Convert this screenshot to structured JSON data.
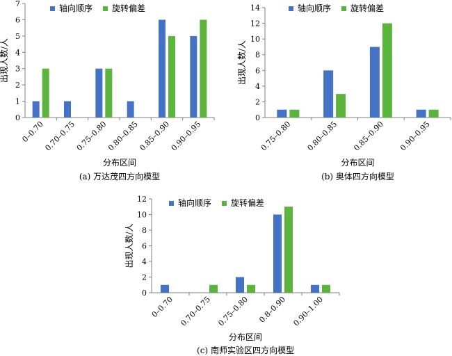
{
  "colors": {
    "series_1": "#4472C4",
    "series_2": "#5BB43C",
    "axis": "#7f7f7f"
  },
  "chart_data": [
    {
      "type": "bar",
      "caption": "(a) 万达茂四方向模型",
      "xlabel": "分布区间",
      "ylabel": "出现人数/人",
      "ylim": [
        0,
        7
      ],
      "yticks": [
        0,
        1,
        2,
        3,
        4,
        5,
        6,
        7
      ],
      "categories": [
        "0–0.70",
        "0.70–0.75",
        "0.75–0.80",
        "0.80–0.85",
        "0.85–0.90",
        "0.90–0.95"
      ],
      "series": [
        {
          "name": "轴向顺序",
          "values": [
            1,
            1,
            3,
            1,
            6,
            5
          ]
        },
        {
          "name": "旋转偏差",
          "values": [
            3,
            0,
            3,
            0,
            5,
            6
          ]
        }
      ],
      "legend": "top",
      "grid": false
    },
    {
      "type": "bar",
      "caption": "(b) 奥体四方向模型",
      "xlabel": "分布区间",
      "ylabel": "出现人数/人",
      "ylim": [
        0,
        14
      ],
      "yticks": [
        0,
        2,
        4,
        6,
        8,
        10,
        12,
        14
      ],
      "categories": [
        "0.75–0.80",
        "0.80–0.85",
        "0.85–0.90",
        "0.90–0.95"
      ],
      "series": [
        {
          "name": "轴向顺序",
          "values": [
            1,
            6,
            9,
            1
          ]
        },
        {
          "name": "旋转偏差",
          "values": [
            1,
            3,
            12,
            1
          ]
        }
      ],
      "legend": "top",
      "grid": false
    },
    {
      "type": "bar",
      "caption": "(c) 南师实验区四方向模型",
      "xlabel": "分布区间",
      "ylabel": "出现人数/人",
      "ylim": [
        0,
        12
      ],
      "yticks": [
        0,
        2,
        4,
        6,
        8,
        10,
        12
      ],
      "categories": [
        "0–0.70",
        "0.70–0.75",
        "0.75–0.80",
        "0.8–0.90",
        "0.90–1.00"
      ],
      "series": [
        {
          "name": "轴向顺序",
          "values": [
            1,
            0,
            2,
            10,
            1
          ]
        },
        {
          "name": "旋转偏差",
          "values": [
            0,
            1,
            1,
            11,
            1
          ]
        }
      ],
      "legend": "top",
      "grid": false
    }
  ]
}
